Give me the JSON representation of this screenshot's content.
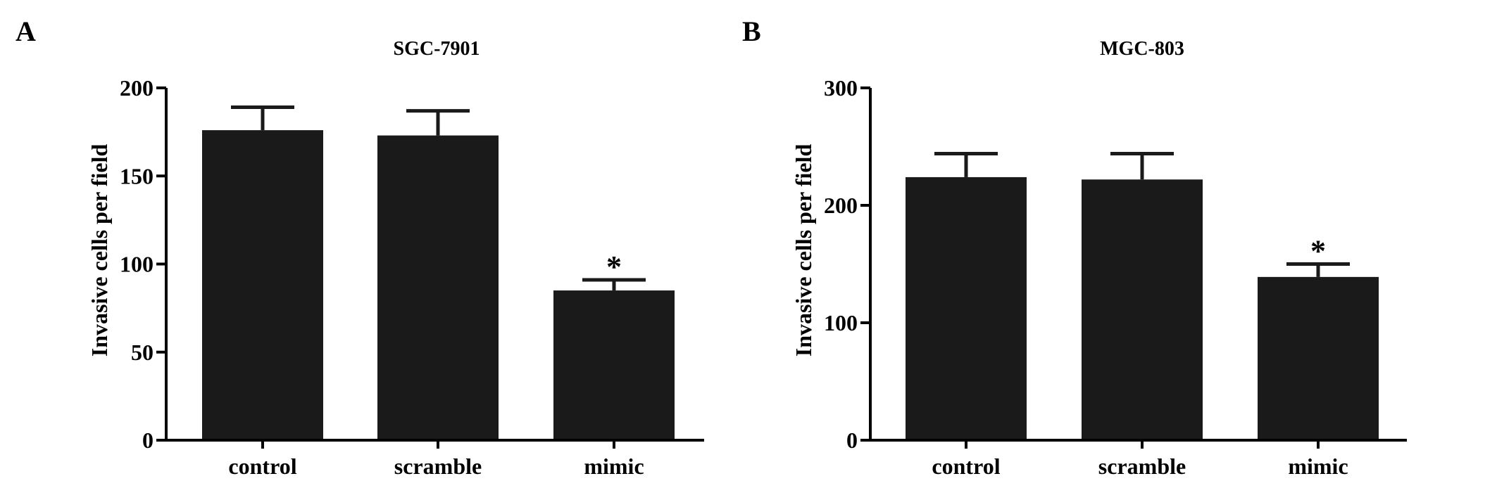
{
  "panels": [
    {
      "letter": "A"
    },
    {
      "letter": "B"
    }
  ],
  "colors": {
    "bar": "#1a1a1a",
    "axis": "#000000"
  },
  "chart_data": [
    {
      "type": "bar",
      "title": "SGC-7901",
      "ylabel": "Invasive cells per field",
      "xlabel": "",
      "categories": [
        "control",
        "scramble",
        "mimic"
      ],
      "values": [
        176,
        173,
        85
      ],
      "error": [
        13,
        14,
        6
      ],
      "annotations": [
        "",
        "",
        "*"
      ],
      "ylim": [
        0,
        200
      ],
      "yticks": [
        0,
        50,
        100,
        150,
        200
      ],
      "grid": false
    },
    {
      "type": "bar",
      "title": "MGC-803",
      "ylabel": "Invasive cells per field",
      "xlabel": "",
      "categories": [
        "control",
        "scramble",
        "mimic"
      ],
      "values": [
        224,
        222,
        139
      ],
      "error": [
        20,
        22,
        11
      ],
      "annotations": [
        "",
        "",
        "*"
      ],
      "ylim": [
        0,
        300
      ],
      "yticks": [
        0,
        100,
        200,
        300
      ],
      "grid": false
    }
  ]
}
